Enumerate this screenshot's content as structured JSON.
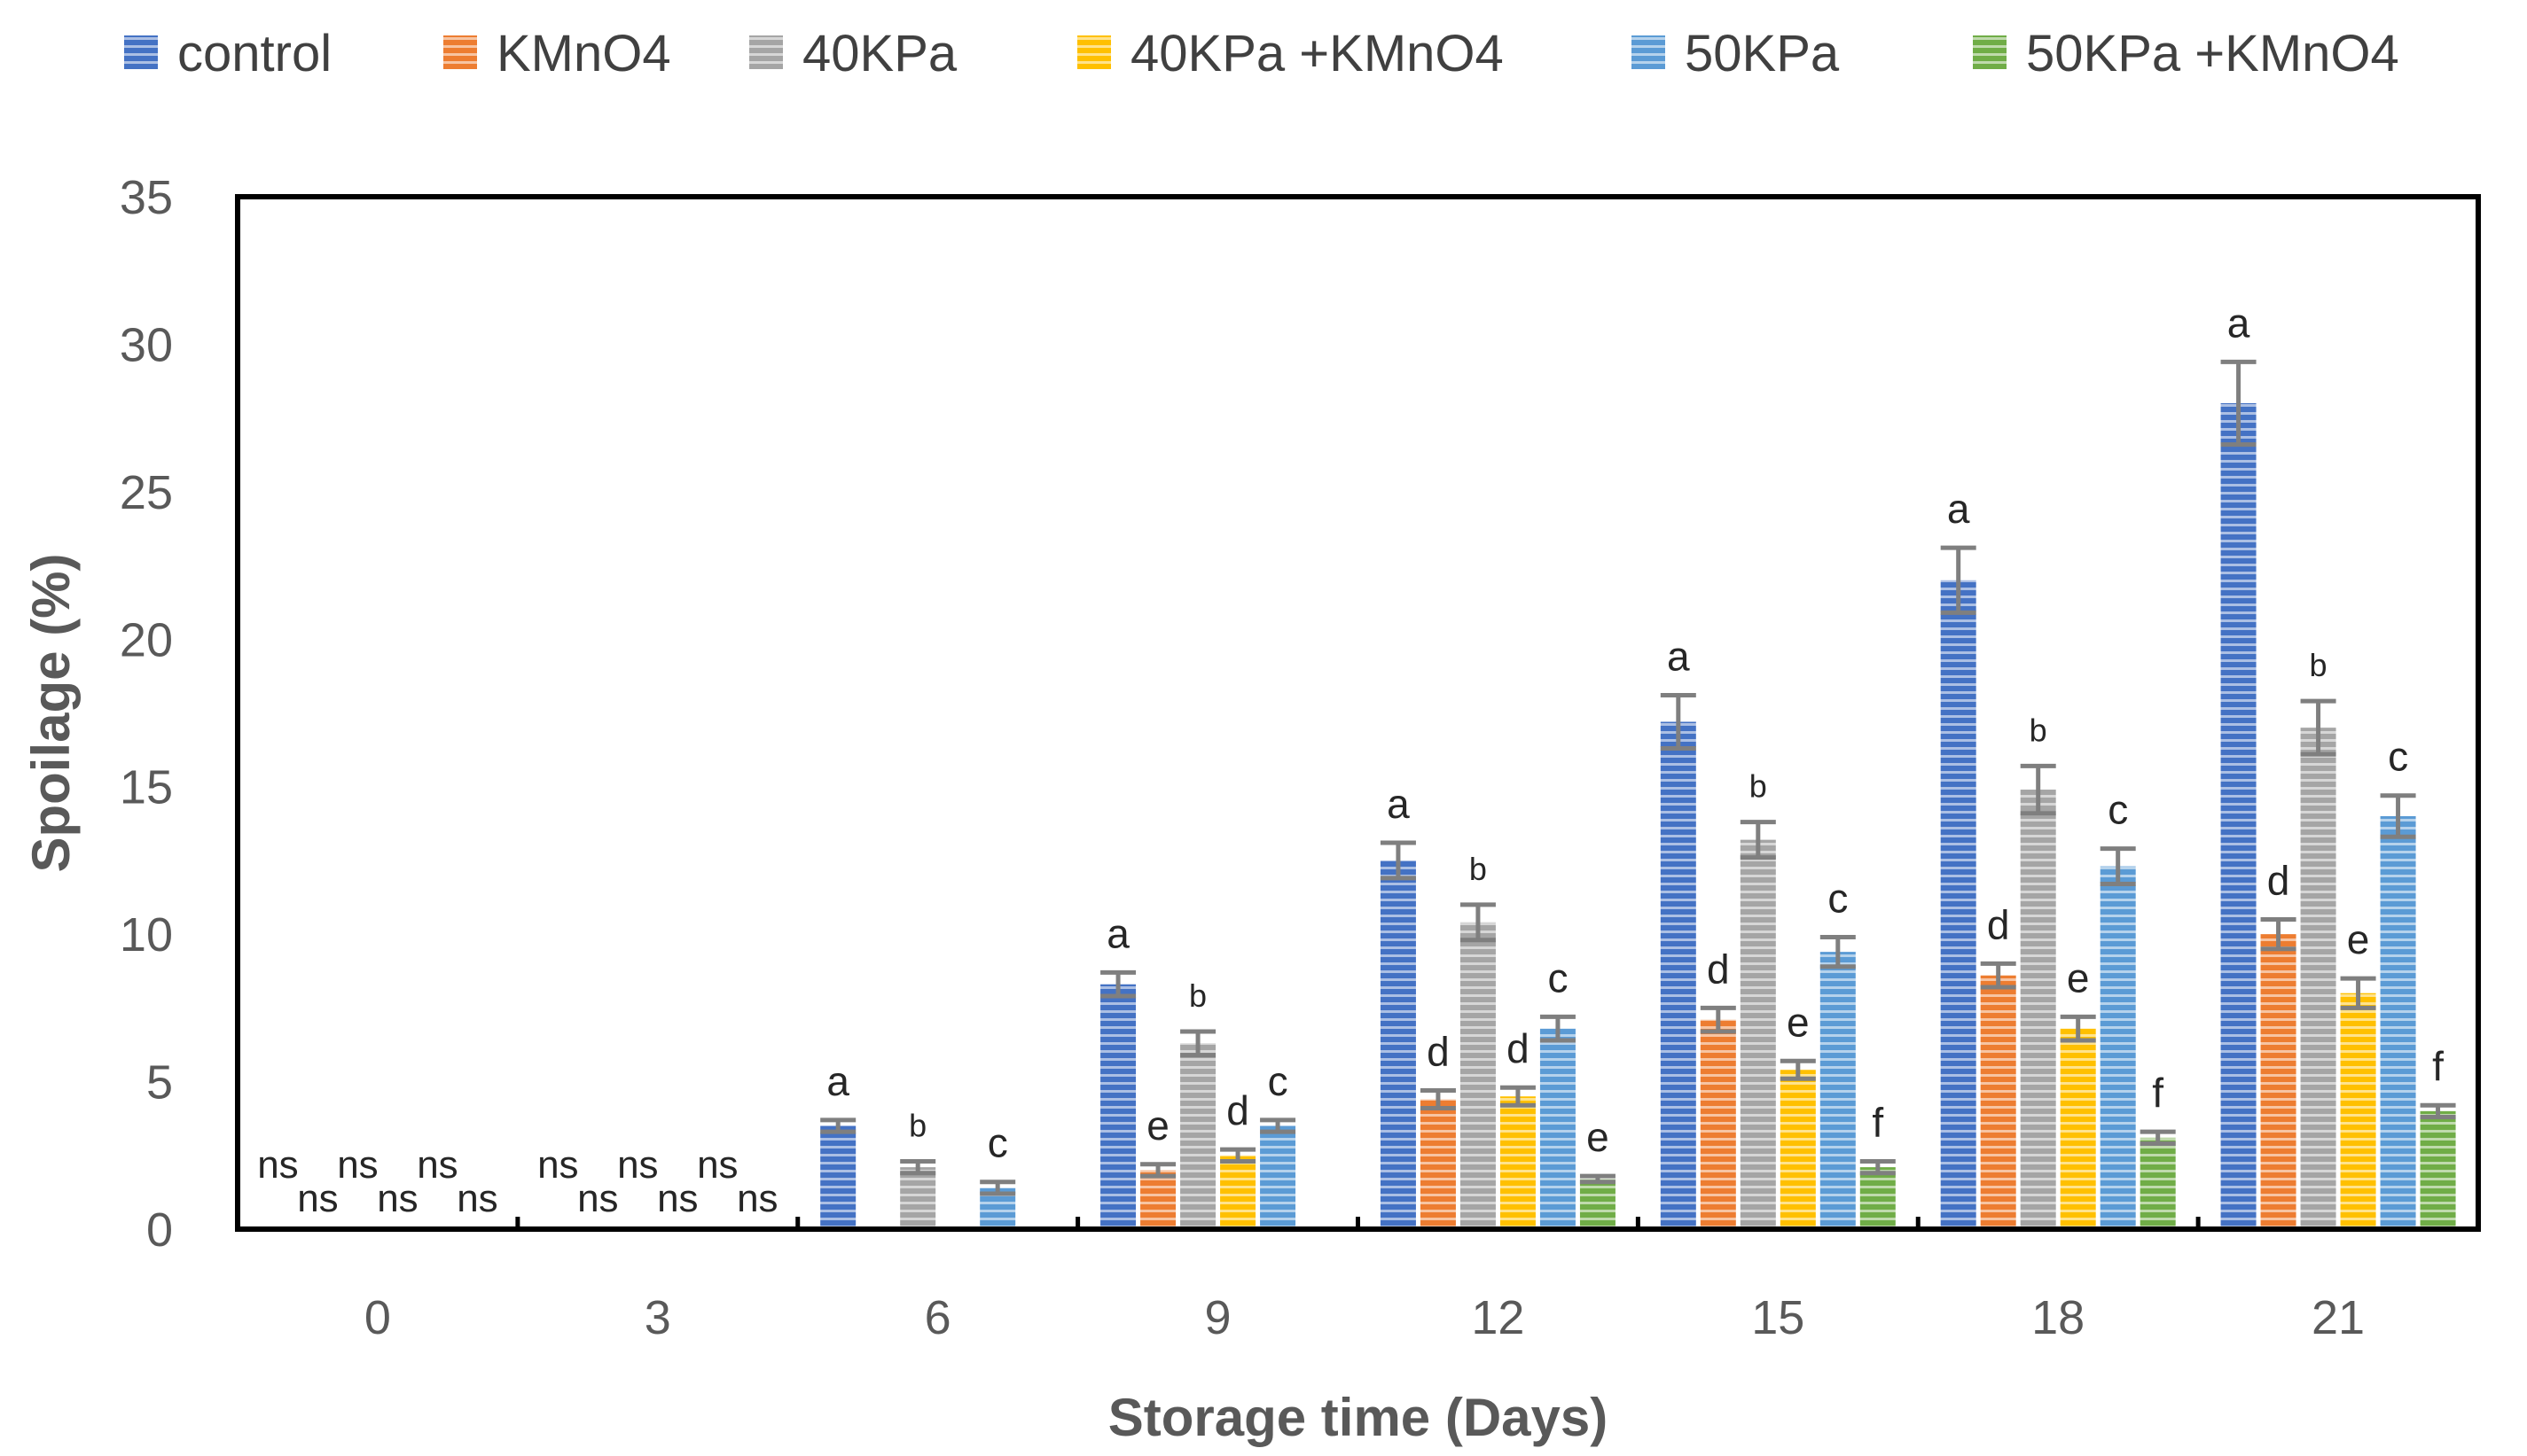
{
  "chart_data": {
    "type": "bar",
    "title": "",
    "xlabel": "Storage time (Days)",
    "ylabel": "Spoilage (%)",
    "ylim": [
      0,
      35
    ],
    "yticks": [
      0,
      5,
      10,
      15,
      20,
      25,
      30,
      35
    ],
    "grid": false,
    "legend_position": "top",
    "categories": [
      "0",
      "3",
      "6",
      "9",
      "12",
      "15",
      "18",
      "21"
    ],
    "series": [
      {
        "name": "control",
        "color": "#4472C4",
        "values": [
          0,
          0,
          3.5,
          8.3,
          12.5,
          17.2,
          22.0,
          28.0
        ],
        "errors": [
          0,
          0,
          0.2,
          0.4,
          0.6,
          0.9,
          1.1,
          1.4
        ],
        "labels": [
          "ns",
          "ns",
          "a",
          "a",
          "a",
          "a",
          "a",
          "a"
        ]
      },
      {
        "name": "KMnO4",
        "color": "#ED7D31",
        "values": [
          0,
          0,
          0,
          2.0,
          4.4,
          7.1,
          8.6,
          10.0
        ],
        "errors": [
          0,
          0,
          0,
          0.2,
          0.3,
          0.4,
          0.4,
          0.5
        ],
        "labels": [
          "ns",
          "ns",
          "",
          "e",
          "d",
          "d",
          "d",
          "d"
        ]
      },
      {
        "name": "40KPa",
        "color": "#A5A5A5",
        "values": [
          0,
          0,
          2.1,
          6.3,
          10.4,
          13.2,
          14.9,
          17.0
        ],
        "errors": [
          0,
          0,
          0.2,
          0.4,
          0.6,
          0.6,
          0.8,
          0.9
        ],
        "labels": [
          "ns",
          "ns",
          "b",
          "b",
          "b",
          "b",
          "b",
          "b"
        ]
      },
      {
        "name": "40KPa +KMnO4",
        "color": "#FFC000",
        "values": [
          0,
          0,
          0,
          2.5,
          4.5,
          5.4,
          6.8,
          8.0
        ],
        "errors": [
          0,
          0,
          0,
          0.2,
          0.3,
          0.3,
          0.4,
          0.5
        ],
        "labels": [
          "ns",
          "ns",
          "",
          "d",
          "d",
          "e",
          "e",
          "e"
        ]
      },
      {
        "name": "50KPa",
        "color": "#5B9BD5",
        "values": [
          0,
          0,
          1.4,
          3.5,
          6.8,
          9.4,
          12.3,
          14.0
        ],
        "errors": [
          0,
          0,
          0.2,
          0.2,
          0.4,
          0.5,
          0.6,
          0.7
        ],
        "labels": [
          "ns",
          "ns",
          "c",
          "c",
          "c",
          "c",
          "c",
          "c"
        ]
      },
      {
        "name": "50KPa +KMnO4",
        "color": "#70AD47",
        "values": [
          0,
          0,
          0,
          0,
          1.7,
          2.1,
          3.1,
          4.0
        ],
        "errors": [
          0,
          0,
          0,
          0,
          0.1,
          0.2,
          0.2,
          0.2
        ],
        "labels": [
          "ns",
          "ns",
          "",
          "",
          "e",
          "f",
          "f",
          "f"
        ]
      }
    ]
  }
}
